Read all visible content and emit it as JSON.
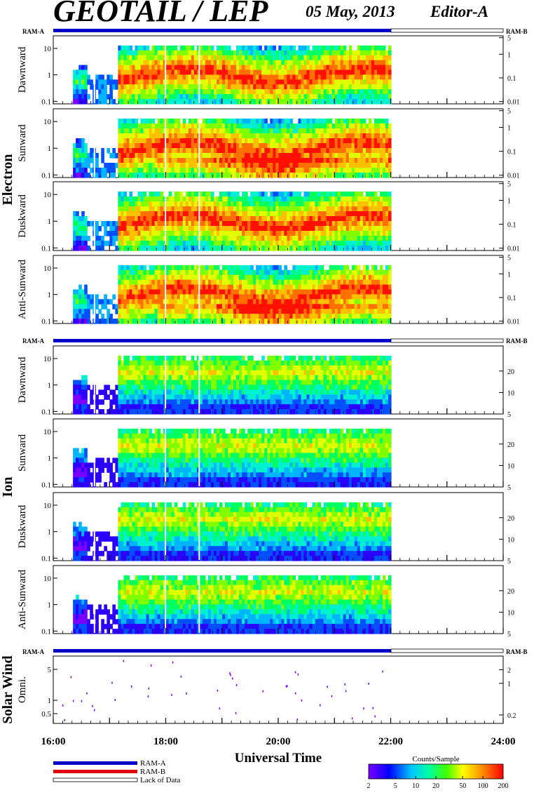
{
  "header": {
    "title": "GEOTAIL / LEP",
    "date": "05 May, 2013",
    "editor": "Editor-A"
  },
  "ram_labels": {
    "left": "RAM-A",
    "right": "RAM-B"
  },
  "groups": [
    {
      "name": "Electron"
    },
    {
      "name": "Ion"
    },
    {
      "name": "Solar Wind"
    }
  ],
  "chart_data": {
    "type": "heatmap",
    "xlabel": "Universal Time",
    "x_range": [
      "16:00",
      "24:00"
    ],
    "x_ticks": [
      "16:00",
      "18:00",
      "20:00",
      "22:00",
      "24:00"
    ],
    "data_end": "22:00",
    "colorbar": {
      "title": "Counts/Sample",
      "ticks": [
        "2",
        "5",
        "10",
        "20",
        "50",
        "100",
        "200"
      ]
    },
    "panels": [
      {
        "group": "Electron",
        "label": "Dawnward",
        "left_ticks": [
          "10",
          "1",
          "0.1"
        ],
        "right_ticks": [
          "5",
          "1",
          "0.1",
          "0.01"
        ]
      },
      {
        "group": "Electron",
        "label": "Sunward",
        "left_ticks": [
          "10",
          "1",
          "0.1"
        ],
        "right_ticks": [
          "5",
          "1",
          "0.1",
          "0.01"
        ]
      },
      {
        "group": "Electron",
        "label": "Duskward",
        "left_ticks": [
          "10",
          "1",
          "0.1"
        ],
        "right_ticks": [
          "5",
          "1",
          "0.1",
          "0.01"
        ]
      },
      {
        "group": "Electron",
        "label": "Anti-Sunward",
        "left_ticks": [
          "10",
          "1",
          "0.1"
        ],
        "right_ticks": [
          "5",
          "1",
          "0.1",
          "0.01"
        ]
      },
      {
        "group": "Ion",
        "label": "Dawnward",
        "left_ticks": [
          "10",
          "1",
          "0.1"
        ],
        "right_ticks": [
          "20",
          "10",
          "5"
        ]
      },
      {
        "group": "Ion",
        "label": "Sunward",
        "left_ticks": [
          "10",
          "1",
          "0.1"
        ],
        "right_ticks": [
          "20",
          "10",
          "5"
        ]
      },
      {
        "group": "Ion",
        "label": "Duskward",
        "left_ticks": [
          "10",
          "1",
          "0.1"
        ],
        "right_ticks": [
          "20",
          "10",
          "5"
        ]
      },
      {
        "group": "Ion",
        "label": "Anti-Sunward",
        "left_ticks": [
          "10",
          "1",
          "0.1"
        ],
        "right_ticks": [
          "20",
          "10",
          "5"
        ]
      },
      {
        "group": "Solar Wind",
        "label": "Omni.",
        "left_ticks": [
          "5",
          "1",
          "0.5"
        ],
        "right_ticks": [
          "2",
          "1",
          "0.2"
        ]
      }
    ]
  },
  "legend": [
    {
      "label": "RAM-A",
      "color": "#0000c8"
    },
    {
      "label": "RAM-B",
      "color": "#e00000"
    },
    {
      "label": "Lack of Data",
      "color": "#ffffff"
    }
  ]
}
